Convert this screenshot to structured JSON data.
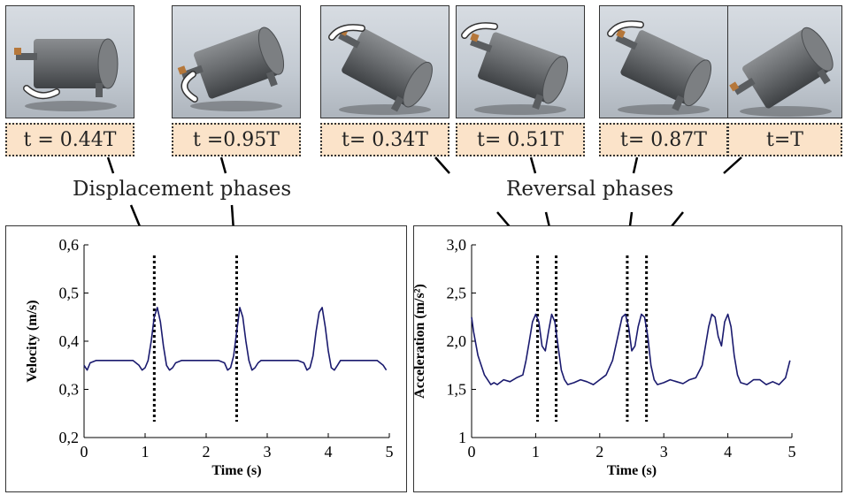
{
  "frames": [
    {
      "label": "t = 0.44T",
      "rotation": 0,
      "arrow": "bottom-right"
    },
    {
      "label": "t =0.95T",
      "rotation": -20,
      "arrow": "bottom-left"
    },
    {
      "label": "t= 0.34T",
      "rotation": 28,
      "arrow": "top-left"
    },
    {
      "label": "t= 0.51T",
      "rotation": 20,
      "arrow": "top-left"
    },
    {
      "label": "t= 0.87T",
      "rotation": 25,
      "arrow": "top-left"
    },
    {
      "label": "t=T",
      "rotation": -32,
      "arrow": "none"
    }
  ],
  "phases": {
    "displacement": "Displacement phases",
    "reversal": "Reversal phases"
  },
  "chart_data": [
    {
      "type": "line",
      "xlabel": "Time (s)",
      "ylabel": "Velocity (m/s)",
      "xlim": [
        0,
        5
      ],
      "ylim": [
        0.2,
        0.6
      ],
      "xticks": [
        "0",
        "1",
        "2",
        "3",
        "4",
        "5"
      ],
      "yticks": [
        "0,2",
        "0,3",
        "0,4",
        "0,5",
        "0,6"
      ],
      "color": "#1a1a6e",
      "x": [
        0,
        0.05,
        0.1,
        0.2,
        0.3,
        0.5,
        0.7,
        0.8,
        0.9,
        0.95,
        1.0,
        1.05,
        1.1,
        1.15,
        1.2,
        1.25,
        1.3,
        1.35,
        1.4,
        1.45,
        1.5,
        1.6,
        1.7,
        2.0,
        2.2,
        2.3,
        2.35,
        2.4,
        2.45,
        2.5,
        2.55,
        2.6,
        2.65,
        2.7,
        2.75,
        2.8,
        2.85,
        2.9,
        3.0,
        3.4,
        3.5,
        3.6,
        3.65,
        3.7,
        3.75,
        3.8,
        3.85,
        3.9,
        3.95,
        4.0,
        4.05,
        4.1,
        4.15,
        4.2,
        4.25,
        4.3,
        4.4,
        4.8,
        4.9,
        4.95
      ],
      "y": [
        0.35,
        0.34,
        0.355,
        0.36,
        0.36,
        0.36,
        0.36,
        0.36,
        0.35,
        0.34,
        0.345,
        0.36,
        0.4,
        0.45,
        0.47,
        0.44,
        0.39,
        0.35,
        0.34,
        0.345,
        0.355,
        0.36,
        0.36,
        0.36,
        0.36,
        0.355,
        0.34,
        0.345,
        0.37,
        0.42,
        0.47,
        0.45,
        0.4,
        0.36,
        0.34,
        0.345,
        0.355,
        0.36,
        0.36,
        0.36,
        0.36,
        0.355,
        0.34,
        0.345,
        0.37,
        0.42,
        0.46,
        0.47,
        0.43,
        0.38,
        0.345,
        0.34,
        0.35,
        0.36,
        0.36,
        0.36,
        0.36,
        0.36,
        0.35,
        0.34
      ],
      "markers": [
        1.15,
        2.5
      ]
    },
    {
      "type": "line",
      "xlabel": "Time (s)",
      "ylabel": "Acceleration (m/s²)",
      "xlim": [
        0,
        5
      ],
      "ylim": [
        1,
        3
      ],
      "xticks": [
        "0",
        "1",
        "2",
        "3",
        "4",
        "5"
      ],
      "yticks": [
        "1",
        "1,5",
        "2,0",
        "2,5",
        "3,0"
      ],
      "color": "#1a1a6e",
      "x": [
        0,
        0.03,
        0.1,
        0.2,
        0.3,
        0.35,
        0.4,
        0.5,
        0.6,
        0.7,
        0.8,
        0.85,
        0.9,
        0.95,
        1.0,
        1.05,
        1.1,
        1.15,
        1.2,
        1.25,
        1.3,
        1.35,
        1.4,
        1.45,
        1.5,
        1.6,
        1.7,
        1.8,
        1.9,
        2.0,
        2.1,
        2.2,
        2.3,
        2.35,
        2.4,
        2.45,
        2.5,
        2.55,
        2.6,
        2.65,
        2.7,
        2.75,
        2.8,
        2.85,
        2.9,
        3.0,
        3.1,
        3.2,
        3.3,
        3.4,
        3.5,
        3.6,
        3.65,
        3.7,
        3.75,
        3.8,
        3.85,
        3.9,
        3.95,
        4.0,
        4.05,
        4.1,
        4.15,
        4.2,
        4.3,
        4.4,
        4.5,
        4.6,
        4.7,
        4.8,
        4.9,
        4.97
      ],
      "y": [
        2.25,
        2.1,
        1.85,
        1.65,
        1.55,
        1.57,
        1.55,
        1.6,
        1.58,
        1.62,
        1.65,
        1.8,
        2.0,
        2.2,
        2.28,
        2.2,
        1.95,
        1.9,
        2.1,
        2.28,
        2.2,
        1.95,
        1.7,
        1.6,
        1.55,
        1.57,
        1.6,
        1.58,
        1.55,
        1.6,
        1.65,
        1.8,
        2.1,
        2.25,
        2.28,
        2.15,
        1.9,
        1.95,
        2.15,
        2.28,
        2.25,
        2.05,
        1.75,
        1.6,
        1.55,
        1.57,
        1.6,
        1.58,
        1.56,
        1.6,
        1.62,
        1.75,
        1.95,
        2.15,
        2.28,
        2.25,
        2.05,
        1.95,
        2.2,
        2.28,
        2.15,
        1.85,
        1.65,
        1.57,
        1.55,
        1.6,
        1.6,
        1.55,
        1.58,
        1.55,
        1.62,
        1.8
      ],
      "markers": [
        1.03,
        1.32,
        2.43,
        2.73
      ]
    }
  ]
}
